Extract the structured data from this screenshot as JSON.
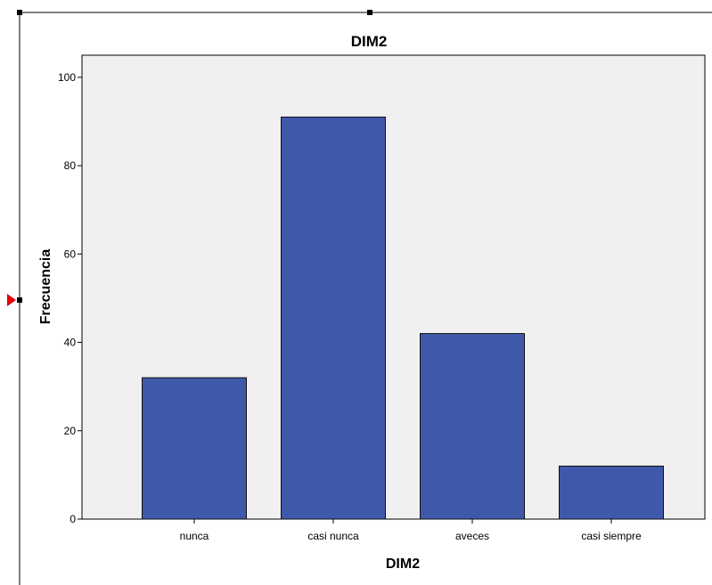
{
  "chart_data": {
    "type": "bar",
    "title": "DIM2",
    "xlabel": "DIM2",
    "ylabel": "Frecuencia",
    "categories": [
      "nunca",
      "casi nunca",
      "aveces",
      "casi siempre"
    ],
    "values": [
      32,
      91,
      42,
      12
    ],
    "ylim": [
      0,
      105
    ],
    "yticks": [
      0,
      20,
      40,
      60,
      80,
      100
    ],
    "grid": false,
    "legend": "none",
    "colors": {
      "bar": "#3f58aa",
      "bar_edge": "#111111",
      "plot_background": "#f0f0f0",
      "frame": "#000000"
    }
  },
  "editor": {
    "selection_marker_color": "#e8000a",
    "handle_icon": "square-handle-icon",
    "pointer_icon": "red-arrow-icon"
  }
}
